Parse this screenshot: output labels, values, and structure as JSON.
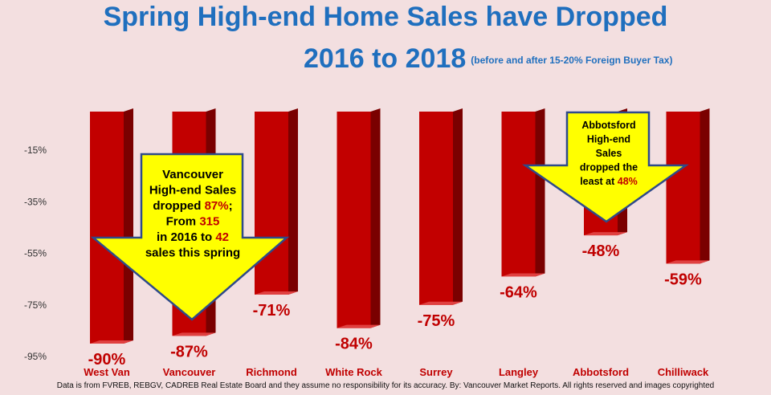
{
  "title": {
    "line1": "Spring High-end Home Sales have Dropped",
    "line2": "2016 to 2018",
    "note": "(before and after 15-20% Foreign Buyer Tax)"
  },
  "chart_data": {
    "type": "bar",
    "categories": [
      "West Van",
      "Vancouver",
      "Richmond",
      "White Rock",
      "Surrey",
      "Langley",
      "Abbotsford",
      "Chilliwack"
    ],
    "values": [
      -90,
      -87,
      -71,
      -84,
      -75,
      -64,
      -48,
      -59
    ],
    "data_labels": [
      "-90%",
      "-87%",
      "-71%",
      "-84%",
      "-75%",
      "-64%",
      "-48%",
      "-59%"
    ],
    "yticks": [
      "-15%",
      "-35%",
      "-55%",
      "-75%",
      "-95%"
    ],
    "ytick_values": [
      -15,
      -35,
      -55,
      -75,
      -95
    ],
    "ylim": [
      -95,
      0
    ],
    "bar_color": "#c20000",
    "label_color": "#c00000",
    "category_color": "#c00000",
    "grid": false,
    "callouts": [
      {
        "target": "Vancouver",
        "lines": [
          [
            {
              "t": "Vancouver"
            }
          ],
          [
            {
              "t": "High-end Sales"
            }
          ],
          [
            {
              "t": "dropped "
            },
            {
              "t": "87%",
              "hl": true
            },
            {
              "t": ";"
            }
          ],
          [
            {
              "t": "From "
            },
            {
              "t": "315",
              "hl": true
            }
          ],
          [
            {
              "t": "in 2016 to "
            },
            {
              "t": "42",
              "hl": true
            }
          ],
          [
            {
              "t": "sales this spring"
            }
          ]
        ]
      },
      {
        "target": "Abbotsford",
        "lines": [
          [
            {
              "t": "Abbotsford"
            }
          ],
          [
            {
              "t": "High-end"
            }
          ],
          [
            {
              "t": "Sales"
            }
          ],
          [
            {
              "t": "dropped the"
            }
          ],
          [
            {
              "t": "least at "
            },
            {
              "t": "48%",
              "hl": true
            }
          ]
        ]
      }
    ],
    "callout_fill": "#ffff00",
    "callout_stroke": "#2e4a8a",
    "highlight_color": "#c00000"
  },
  "footer": "Data is from FVREB, REBGV, CADREB Real Estate Board and they assume no responsibility for its accuracy. By: Vancouver Market Reports. All rights reserved and images copyrighted"
}
